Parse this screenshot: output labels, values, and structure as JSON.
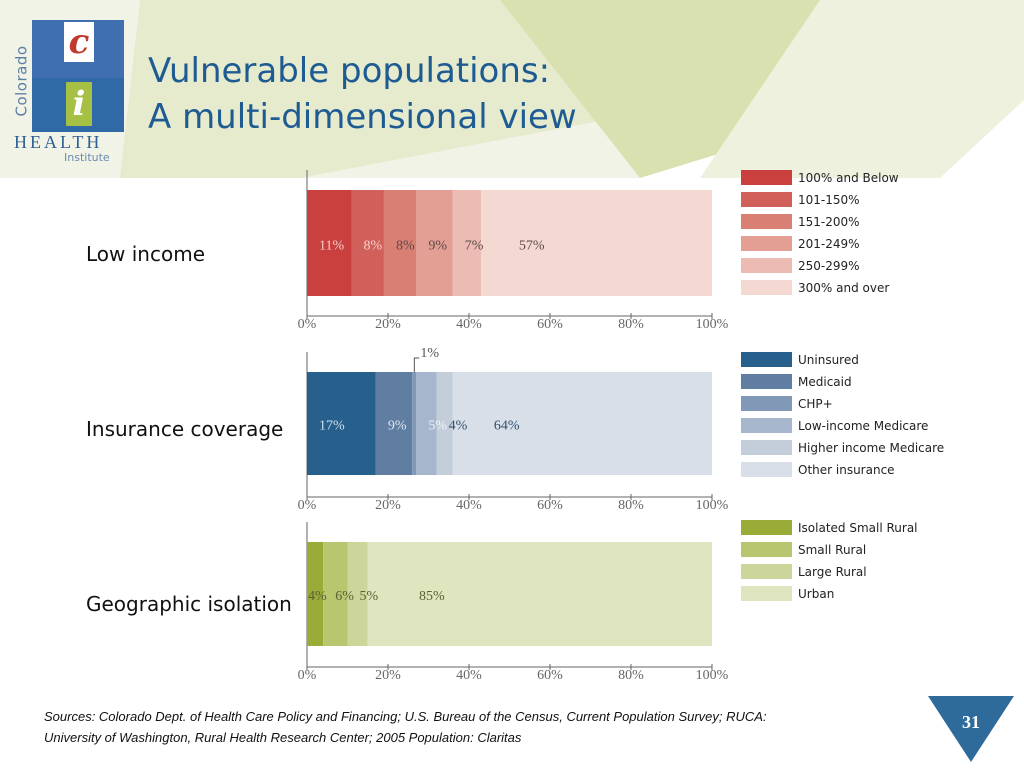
{
  "logo": {
    "side_text": "Colorado",
    "letter_c": "c",
    "letter_i": "i",
    "health": "HEALTH",
    "institute": "Institute"
  },
  "title": {
    "line1": "Vulnerable populations:",
    "line2": "A multi-dimensional view"
  },
  "colors": {
    "title": "#1f5b93",
    "axis": "#555555"
  },
  "chart_data": [
    {
      "type": "bar",
      "orientation": "horizontal-stacked",
      "row_label": "Low income",
      "xlim": [
        0,
        100
      ],
      "x_ticks": [
        "0%",
        "20%",
        "40%",
        "60%",
        "80%",
        "100%"
      ],
      "series": [
        {
          "name": "100% and Below",
          "value": 11,
          "label": "11%",
          "color": "#c9403f"
        },
        {
          "name": "101-150%",
          "value": 8,
          "label": "8%",
          "color": "#d2605a"
        },
        {
          "name": "151-200%",
          "value": 8,
          "label": "8%",
          "color": "#da7f74"
        },
        {
          "name": "201-249%",
          "value": 9,
          "label": "9%",
          "color": "#e49f95"
        },
        {
          "name": "250-299%",
          "value": 7,
          "label": "7%",
          "color": "#ecbcb4"
        },
        {
          "name": "300% and over",
          "value": 57,
          "label": "57%",
          "color": "#f4d8d2"
        }
      ]
    },
    {
      "type": "bar",
      "orientation": "horizontal-stacked",
      "row_label": "Insurance coverage",
      "xlim": [
        0,
        100
      ],
      "x_ticks": [
        "0%",
        "20%",
        "40%",
        "60%",
        "80%",
        "100%"
      ],
      "annotation": "1%",
      "series": [
        {
          "name": "Uninsured",
          "value": 17,
          "label": "17%",
          "color": "#27608c"
        },
        {
          "name": "Medicaid",
          "value": 9,
          "label": "9%",
          "color": "#5f7ea2"
        },
        {
          "name": "CHP+",
          "value": 1,
          "label": "",
          "color": "#8198b6"
        },
        {
          "name": "Low-income Medicare",
          "value": 5,
          "label": "5%",
          "color": "#a6b6cc"
        },
        {
          "name": "Higher income Medicare",
          "value": 4,
          "label": "4%",
          "color": "#c3ceda"
        },
        {
          "name": "Other insurance",
          "value": 64,
          "label": "64%",
          "color": "#d8dfe8"
        }
      ]
    },
    {
      "type": "bar",
      "orientation": "horizontal-stacked",
      "row_label": "Geographic isolation",
      "xlim": [
        0,
        100
      ],
      "x_ticks": [
        "0%",
        "20%",
        "40%",
        "60%",
        "80%",
        "100%"
      ],
      "series": [
        {
          "name": "Isolated Small Rural",
          "value": 4,
          "label": "4%",
          "color": "#9aab38"
        },
        {
          "name": "Small Rural",
          "value": 6,
          "label": "6%",
          "color": "#b8c670"
        },
        {
          "name": "Large Rural",
          "value": 5,
          "label": "5%",
          "color": "#ccd69a"
        },
        {
          "name": "Urban",
          "value": 85,
          "label": "85%",
          "color": "#dfe5bf"
        }
      ]
    }
  ],
  "sources": {
    "line1": "Sources: Colorado Dept. of Health Care Policy and Financing; U.S. Bureau of the Census, Current Population Survey; RUCA:",
    "line2": "University of Washington, Rural Health Research Center; 2005 Population: Claritas"
  },
  "page_number": "31"
}
